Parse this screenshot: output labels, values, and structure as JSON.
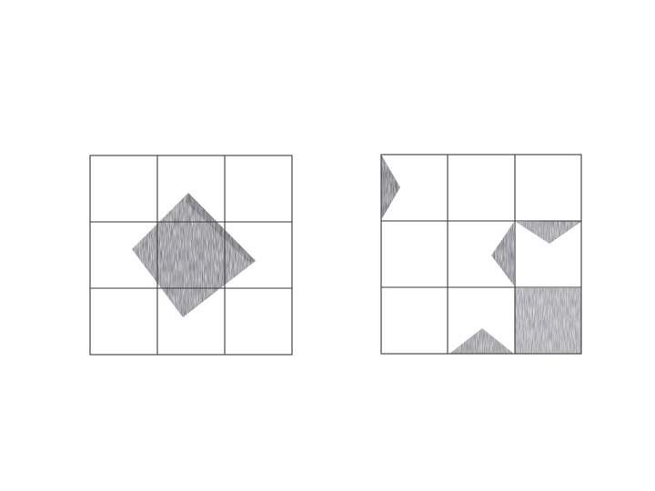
{
  "colors": {
    "background": "#ffffff",
    "grid_line": "#3a3a3a",
    "shade_dark": "#5a5a62",
    "shade_mid": "#7c7c84",
    "shade_light": "#a6a6ac"
  },
  "left_figure": {
    "grid": "3x3",
    "shape": "rotated-square"
  },
  "right_figure": {
    "grid": "3x3",
    "pieces": [
      "left-edge-triangle",
      "center-right-triangle",
      "top-wedge-triangle",
      "bottom-triangle",
      "bottom-right-square"
    ]
  }
}
